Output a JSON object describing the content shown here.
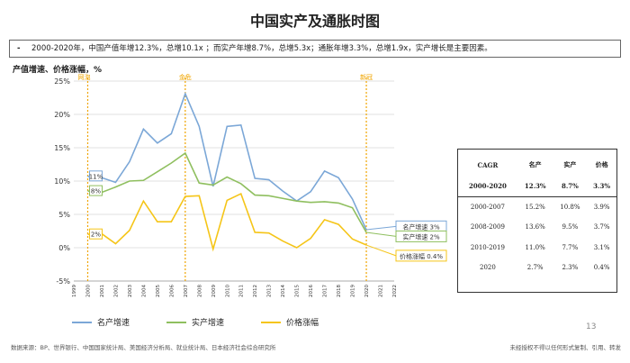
{
  "title": "中国实产及通胀时图",
  "summary_text": "2000-2020年，中国产值年增12.3%，总增10.1x ；而实产年增8.7%，总增5.3x；通胀年增3.3%，总增1.9x，实产增长是主要因素。",
  "y_axis_title": "产值增速、价格涨幅，%",
  "chart_data": {
    "type": "line",
    "ylabel": "产值增速、价格涨幅，%",
    "ylim": [
      -5,
      25
    ],
    "yticks": [
      "-5%",
      "0%",
      "5%",
      "10%",
      "15%",
      "20%",
      "25%"
    ],
    "x": [
      "1999",
      "2000",
      "2001",
      "2002",
      "2003",
      "2004",
      "2005",
      "2006",
      "2007",
      "2008",
      "2009",
      "2010",
      "2011",
      "2012",
      "2013",
      "2014",
      "2015",
      "2016",
      "2017",
      "2018",
      "2019",
      "2020",
      "2021",
      "2022"
    ],
    "grid": true,
    "series": [
      {
        "name": "名产增速",
        "color": "#7ba7d7",
        "values": [
          null,
          10.7,
          10.5,
          9.8,
          12.9,
          17.8,
          15.7,
          17.1,
          23.1,
          18.2,
          9.2,
          18.2,
          18.4,
          10.4,
          10.2,
          8.5,
          7.0,
          8.4,
          11.5,
          10.5,
          7.3,
          2.7,
          null,
          null
        ]
      },
      {
        "name": "实产增速",
        "color": "#8fbf5f",
        "values": [
          null,
          8.5,
          8.3,
          9.1,
          10.0,
          10.1,
          11.4,
          12.7,
          14.2,
          9.7,
          9.4,
          10.6,
          9.6,
          7.9,
          7.8,
          7.4,
          7.0,
          6.8,
          6.9,
          6.7,
          6.0,
          2.3,
          null,
          null
        ]
      },
      {
        "name": "价格涨幅",
        "color": "#f5c518",
        "values": [
          null,
          2.0,
          2.1,
          0.6,
          2.6,
          7.0,
          3.9,
          3.9,
          7.7,
          7.8,
          -0.2,
          7.1,
          8.1,
          2.3,
          2.2,
          1.0,
          0.0,
          1.4,
          4.2,
          3.5,
          1.3,
          0.4,
          null,
          null
        ]
      }
    ],
    "event_lines": [
      {
        "x": "2000",
        "label": "网泡",
        "color": "#f0a500"
      },
      {
        "x": "2007",
        "label": "金危",
        "color": "#f0a500"
      },
      {
        "x": "2020",
        "label": "新冠",
        "color": "#f0a500"
      }
    ],
    "start_labels": [
      {
        "text": "11%",
        "series": 0
      },
      {
        "text": "8%",
        "series": 1
      },
      {
        "text": "2%",
        "series": 2
      }
    ],
    "end_labels": [
      {
        "text": "名产增速 3%",
        "series": 0
      },
      {
        "text": "实产增速 2%",
        "series": 1
      },
      {
        "text": "价格涨幅 0.4%",
        "series": 2
      }
    ]
  },
  "table": {
    "headers": [
      "CAGR",
      "名产",
      "实产",
      "价格"
    ],
    "rows": [
      {
        "label": "2000-2020",
        "vals": [
          "12.3%",
          "8.7%",
          "3.3%"
        ],
        "bold": true
      },
      {
        "label": "2000-2007",
        "vals": [
          "15.2%",
          "10.8%",
          "3.9%"
        ],
        "bold": false
      },
      {
        "label": "2008-2009",
        "vals": [
          "13.6%",
          "9.5%",
          "3.7%"
        ],
        "bold": false
      },
      {
        "label": "2010-2019",
        "vals": [
          "11.0%",
          "7.7%",
          "3.1%"
        ],
        "bold": false
      },
      {
        "label": "2020",
        "vals": [
          "2.7%",
          "2.3%",
          "0.4%"
        ],
        "bold": false
      }
    ]
  },
  "legend": [
    "名产增速",
    "实产增速",
    "价格涨幅"
  ],
  "page_number": "13",
  "source": "数据来源：BP、世界银行、中国国家统计局、美国经济分析局、就业统计局、日本经济社会综合研究所",
  "disclaimer": "未经授权不得以任何形式复制、引用、转发"
}
